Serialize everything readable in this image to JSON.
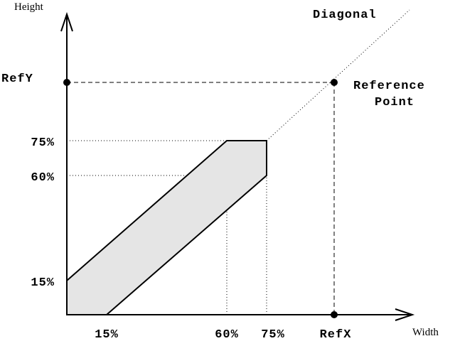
{
  "axes": {
    "y_label": "Height",
    "x_label": "Width"
  },
  "diagonal_label": "Diagonal",
  "ref_y_label": "RefY",
  "ref_x_label": "RefX",
  "reference_point_label": [
    "Reference",
    "Point"
  ],
  "y_ticks": [
    "75%",
    "60%",
    "15%"
  ],
  "x_ticks": [
    "15%",
    "60%",
    "75%"
  ]
}
